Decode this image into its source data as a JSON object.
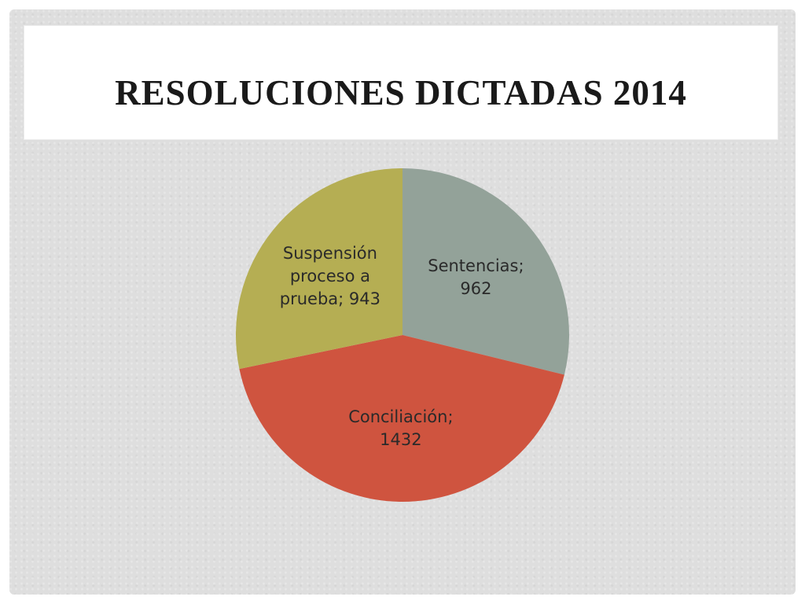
{
  "slide": {
    "title": "RESOLUCIONES DICTADAS 2014"
  },
  "chart_data": {
    "type": "pie",
    "title": "RESOLUCIONES DICTADAS 2014",
    "slices": [
      {
        "name": "Sentencias",
        "value": 962,
        "label_lines": [
          "Sentencias;",
          "962"
        ],
        "color": "#93a299"
      },
      {
        "name": "Conciliación",
        "value": 1432,
        "label_lines": [
          "Conciliación;",
          "1432"
        ],
        "color": "#cf543f"
      },
      {
        "name": "Suspensión proceso a prueba",
        "value": 943,
        "label_lines": [
          "Suspensión",
          "proceso  a",
          "prueba; 943"
        ],
        "color": "#b5ae53"
      }
    ],
    "start_angle_deg": 0,
    "direction": "clockwise",
    "legend": "none",
    "data_labels": "inside"
  }
}
